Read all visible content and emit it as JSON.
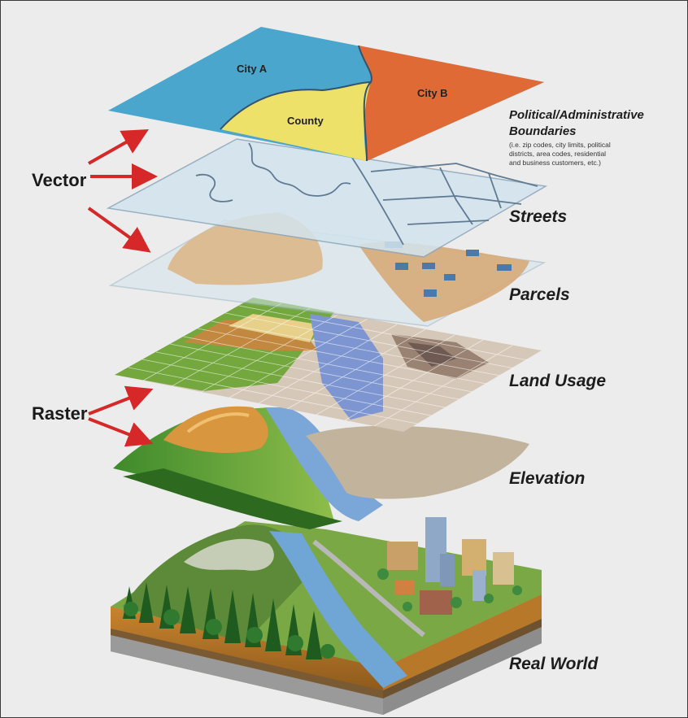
{
  "diagram": {
    "side_labels": {
      "vector": "Vector",
      "raster": "Raster"
    },
    "layers": {
      "political": {
        "label_line1": "Political/Administrative",
        "label_line2": "Boundaries",
        "note_lines": [
          "(i.e. zip codes, city limits, political",
          "districts, area codes, residential",
          "and business customers, etc.)"
        ],
        "regions": {
          "city_a": "City A",
          "city_b": "City B",
          "county": "County"
        }
      },
      "streets": {
        "label": "Streets"
      },
      "parcels": {
        "label": "Parcels"
      },
      "land_usage": {
        "label": "Land Usage"
      },
      "elevation": {
        "label": "Elevation"
      },
      "real_world": {
        "label": "Real World"
      }
    },
    "colors": {
      "city_a": "#4aa6cc",
      "city_b": "#e06a35",
      "county": "#ede16a",
      "arrows": "#d62828",
      "vector_plane": "#d6e6ee"
    }
  }
}
